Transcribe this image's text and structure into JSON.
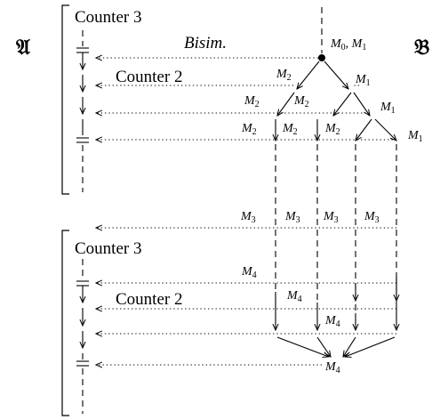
{
  "structure_a_label": "𝔄",
  "structure_b_label": "𝔅",
  "bisim_label": "Bisim.",
  "top_group": {
    "counter_3_label": "Counter 3",
    "counter_2_label": "Counter 2"
  },
  "bottom_group": {
    "counter_3_label": "Counter 3",
    "counter_2_label": "Counter 2"
  },
  "tree_labels": {
    "root_prefix": "M",
    "root_sub0": "0",
    "root_sep": ", ",
    "root_sub1": "1",
    "m_letter": "M",
    "sub1": "1",
    "sub2": "2",
    "sub3": "3",
    "sub4": "4"
  }
}
